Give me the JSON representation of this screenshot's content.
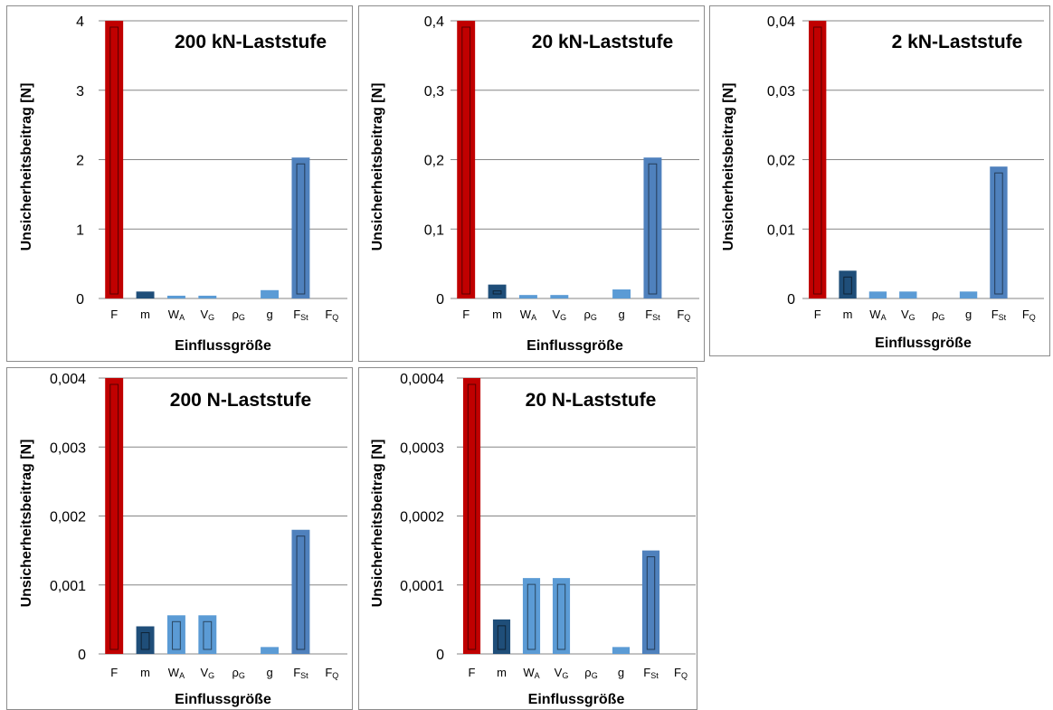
{
  "colors": {
    "F": "#c00000",
    "m": "#1f4e79",
    "other": "#4f81bd",
    "ref": "#5b9bd5"
  },
  "chart_data": [
    {
      "type": "bar",
      "title": "200 kN-Laststufe",
      "xlabel": "Einflussgröße",
      "ylabel": "Unsicherheitsbeitrag [N]",
      "categories": [
        [
          "F",
          ""
        ],
        [
          "m",
          ""
        ],
        [
          "W",
          "A"
        ],
        [
          "V",
          "G"
        ],
        [
          "ρ",
          "G"
        ],
        [
          "g",
          ""
        ],
        [
          "F",
          "St"
        ],
        [
          "F",
          "Q"
        ]
      ],
      "values": [
        4,
        0.1,
        0.04,
        0.04,
        0,
        0.12,
        2.03,
        0
      ],
      "ylim": [
        0,
        4
      ],
      "yticks": [
        "0",
        "1",
        "2",
        "3",
        "4"
      ],
      "grid": true
    },
    {
      "type": "bar",
      "title": "20 kN-Laststufe",
      "xlabel": "Einflussgröße",
      "ylabel": "Unsicherheitsbeitrag [N]",
      "categories": [
        [
          "F",
          ""
        ],
        [
          "m",
          ""
        ],
        [
          "W",
          "A"
        ],
        [
          "V",
          "G"
        ],
        [
          "ρ",
          "G"
        ],
        [
          "g",
          ""
        ],
        [
          "F",
          "St"
        ],
        [
          "F",
          "Q"
        ]
      ],
      "values": [
        0.4,
        0.02,
        0.005,
        0.005,
        0,
        0.013,
        0.203,
        0
      ],
      "ylim": [
        0,
        0.4
      ],
      "yticks": [
        "0",
        "0,1",
        "0,2",
        "0,3",
        "0,4"
      ],
      "grid": true
    },
    {
      "type": "bar",
      "title": "2 kN-Laststufe",
      "xlabel": "Einflussgröße",
      "ylabel": "Unsicherheitsbeitrag [N]",
      "categories": [
        [
          "F",
          ""
        ],
        [
          "m",
          ""
        ],
        [
          "W",
          "A"
        ],
        [
          "V",
          "G"
        ],
        [
          "ρ",
          "G"
        ],
        [
          "g",
          ""
        ],
        [
          "F",
          "St"
        ],
        [
          "F",
          "Q"
        ]
      ],
      "values": [
        0.04,
        0.004,
        0.001,
        0.001,
        0,
        0.001,
        0.019,
        0
      ],
      "ylim": [
        0,
        0.04
      ],
      "yticks": [
        "0",
        "0,01",
        "0,02",
        "0,03",
        "0,04"
      ],
      "grid": true
    },
    {
      "type": "bar",
      "title": "200 N-Laststufe",
      "xlabel": "Einflussgröße",
      "ylabel": "Unsicherheitsbeitrag [N]",
      "categories": [
        [
          "F",
          ""
        ],
        [
          "m",
          ""
        ],
        [
          "W",
          "A"
        ],
        [
          "V",
          "G"
        ],
        [
          "ρ",
          "G"
        ],
        [
          "g",
          ""
        ],
        [
          "F",
          "St"
        ],
        [
          "F",
          "Q"
        ]
      ],
      "values": [
        0.004,
        0.0004,
        0.00056,
        0.00056,
        0,
        0.0001,
        0.0018,
        0
      ],
      "ylim": [
        0,
        0.004
      ],
      "yticks": [
        "0",
        "0,001",
        "0,002",
        "0,003",
        "0,004"
      ],
      "grid": true
    },
    {
      "type": "bar",
      "title": "20 N-Laststufe",
      "xlabel": "Einflussgröße",
      "ylabel": "Unsicherheitsbeitrag [N]",
      "categories": [
        [
          "F",
          ""
        ],
        [
          "m",
          ""
        ],
        [
          "W",
          "A"
        ],
        [
          "V",
          "G"
        ],
        [
          "ρ",
          "G"
        ],
        [
          "g",
          ""
        ],
        [
          "F",
          "St"
        ],
        [
          "F",
          "Q"
        ]
      ],
      "values": [
        0.0004,
        5e-05,
        0.00011,
        0.00011,
        0,
        1e-05,
        0.00015,
        0
      ],
      "ylim": [
        0,
        0.0004
      ],
      "yticks": [
        "0",
        "0,0001",
        "0,0002",
        "0,0003",
        "0,0004"
      ],
      "grid": true
    }
  ]
}
